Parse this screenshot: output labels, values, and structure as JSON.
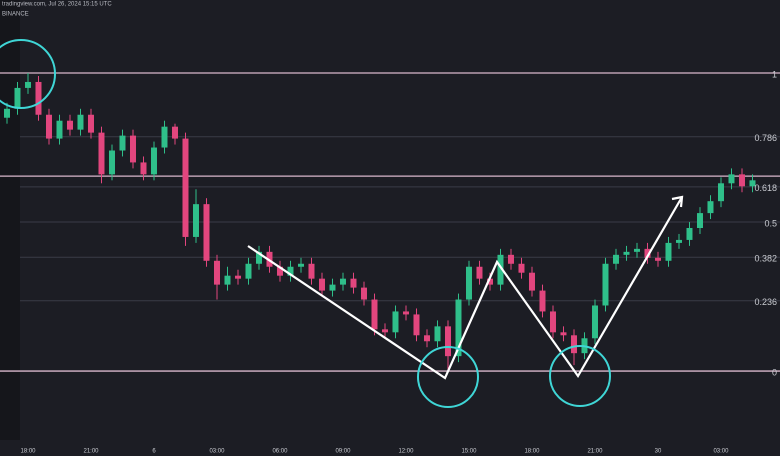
{
  "header": {
    "source": "tradingview.com, Jul 26, 2024 15:15 UTC",
    "exchange": "BINANCE"
  },
  "chart_data": {
    "type": "candlestick",
    "x": [
      -1,
      -0.5,
      0,
      0.5,
      1,
      1.5,
      2,
      2.5,
      3,
      3.5,
      4,
      4.5,
      5,
      5.5,
      6,
      6.5,
      7,
      7.5,
      8,
      8.5,
      9,
      9.5,
      10,
      10.5,
      11,
      11.5,
      12,
      12.5,
      13,
      13.5,
      14,
      14.5,
      15,
      15.5,
      16,
      16.5,
      17,
      17.5,
      18,
      18.5,
      19,
      19.5,
      20,
      20.5,
      21,
      21.5,
      22,
      22.5,
      23,
      23.5,
      24,
      24.5,
      25,
      25.5,
      26,
      26.5,
      27,
      27.5,
      28,
      28.5,
      29,
      29.5,
      30,
      30.5,
      31,
      31.5,
      32,
      32.5,
      33,
      33.5,
      34,
      34.5
    ],
    "open": [
      0.85,
      0.88,
      0.95,
      0.97,
      0.86,
      0.78,
      0.84,
      0.81,
      0.86,
      0.8,
      0.66,
      0.74,
      0.79,
      0.7,
      0.66,
      0.75,
      0.82,
      0.78,
      0.45,
      0.56,
      0.37,
      0.29,
      0.32,
      0.31,
      0.36,
      0.4,
      0.35,
      0.32,
      0.35,
      0.36,
      0.31,
      0.27,
      0.29,
      0.31,
      0.28,
      0.24,
      0.14,
      0.13,
      0.2,
      0.19,
      0.12,
      0.1,
      0.15,
      0.05,
      0.24,
      0.35,
      0.31,
      0.29,
      0.39,
      0.36,
      0.33,
      0.27,
      0.2,
      0.13,
      0.12,
      0.06,
      0.11,
      0.22,
      0.36,
      0.39,
      0.4,
      0.41,
      0.38,
      0.37,
      0.43,
      0.44,
      0.48,
      0.53,
      0.57,
      0.63,
      0.66,
      0.62
    ],
    "high": [
      0.9,
      0.97,
      1.0,
      0.99,
      0.88,
      0.86,
      0.86,
      0.88,
      0.88,
      0.82,
      0.76,
      0.81,
      0.81,
      0.72,
      0.77,
      0.84,
      0.83,
      0.8,
      0.61,
      0.58,
      0.39,
      0.35,
      0.34,
      0.38,
      0.42,
      0.42,
      0.37,
      0.37,
      0.38,
      0.38,
      0.33,
      0.31,
      0.33,
      0.33,
      0.3,
      0.26,
      0.16,
      0.22,
      0.22,
      0.21,
      0.14,
      0.17,
      0.17,
      0.26,
      0.37,
      0.37,
      0.33,
      0.41,
      0.41,
      0.38,
      0.35,
      0.29,
      0.22,
      0.15,
      0.14,
      0.13,
      0.24,
      0.38,
      0.41,
      0.42,
      0.43,
      0.43,
      0.4,
      0.45,
      0.46,
      0.5,
      0.55,
      0.59,
      0.65,
      0.68,
      0.68,
      0.66
    ],
    "low": [
      0.83,
      0.86,
      0.93,
      0.84,
      0.76,
      0.76,
      0.79,
      0.79,
      0.78,
      0.63,
      0.64,
      0.72,
      0.68,
      0.64,
      0.64,
      0.73,
      0.76,
      0.42,
      0.43,
      0.35,
      0.24,
      0.27,
      0.29,
      0.29,
      0.34,
      0.33,
      0.3,
      0.3,
      0.33,
      0.29,
      0.25,
      0.25,
      0.27,
      0.26,
      0.22,
      0.12,
      0.11,
      0.11,
      0.17,
      0.1,
      0.08,
      0.08,
      0,
      0.03,
      0.22,
      0.29,
      0.27,
      0.27,
      0.34,
      0.31,
      0.25,
      0.18,
      0.11,
      0.1,
      0.02,
      0.04,
      0.09,
      0.2,
      0.34,
      0.37,
      0.38,
      0.36,
      0.35,
      0.35,
      0.41,
      0.42,
      0.46,
      0.51,
      0.55,
      0.61,
      0.6,
      0.6
    ],
    "close": [
      0.88,
      0.95,
      0.97,
      0.86,
      0.78,
      0.84,
      0.81,
      0.86,
      0.8,
      0.66,
      0.74,
      0.79,
      0.7,
      0.66,
      0.75,
      0.82,
      0.78,
      0.45,
      0.56,
      0.37,
      0.29,
      0.32,
      0.31,
      0.36,
      0.4,
      0.35,
      0.32,
      0.35,
      0.36,
      0.31,
      0.27,
      0.29,
      0.31,
      0.28,
      0.24,
      0.14,
      0.13,
      0.2,
      0.19,
      0.12,
      0.1,
      0.15,
      0.05,
      0.24,
      0.35,
      0.31,
      0.29,
      0.39,
      0.36,
      0.33,
      0.27,
      0.2,
      0.13,
      0.12,
      0.06,
      0.11,
      0.22,
      0.36,
      0.39,
      0.4,
      0.41,
      0.38,
      0.37,
      0.43,
      0.44,
      0.48,
      0.53,
      0.57,
      0.63,
      0.66,
      0.62,
      0.64
    ],
    "up_color": "#2fbf8a",
    "down_color": "#e2467e",
    "xlim": [
      -1.333,
      35.81
    ],
    "xticks": [
      {
        "value": 0,
        "label": "18:00"
      },
      {
        "value": 3,
        "label": "21:00"
      },
      6,
      {
        "value": 9,
        "label": "03:00"
      },
      {
        "value": 12,
        "label": "06:00"
      },
      {
        "value": 15,
        "label": "09:00"
      },
      {
        "value": 18,
        "label": "12:00"
      },
      {
        "value": 21,
        "label": "15:00"
      },
      {
        "value": 24,
        "label": "18:00"
      },
      {
        "value": 27,
        "label": "21:00"
      },
      30,
      {
        "value": 33,
        "label": "03:00"
      }
    ],
    "xtick_labels_override": null,
    "ylim": [
      -0.285,
      1.245
    ],
    "yticks": [
      0,
      0.236,
      0.382,
      0.5,
      0.618,
      0.786,
      1
    ],
    "hlines": [
      1,
      0.654,
      0
    ],
    "hline_color": "#d9b8cc",
    "grid": true
  }
}
